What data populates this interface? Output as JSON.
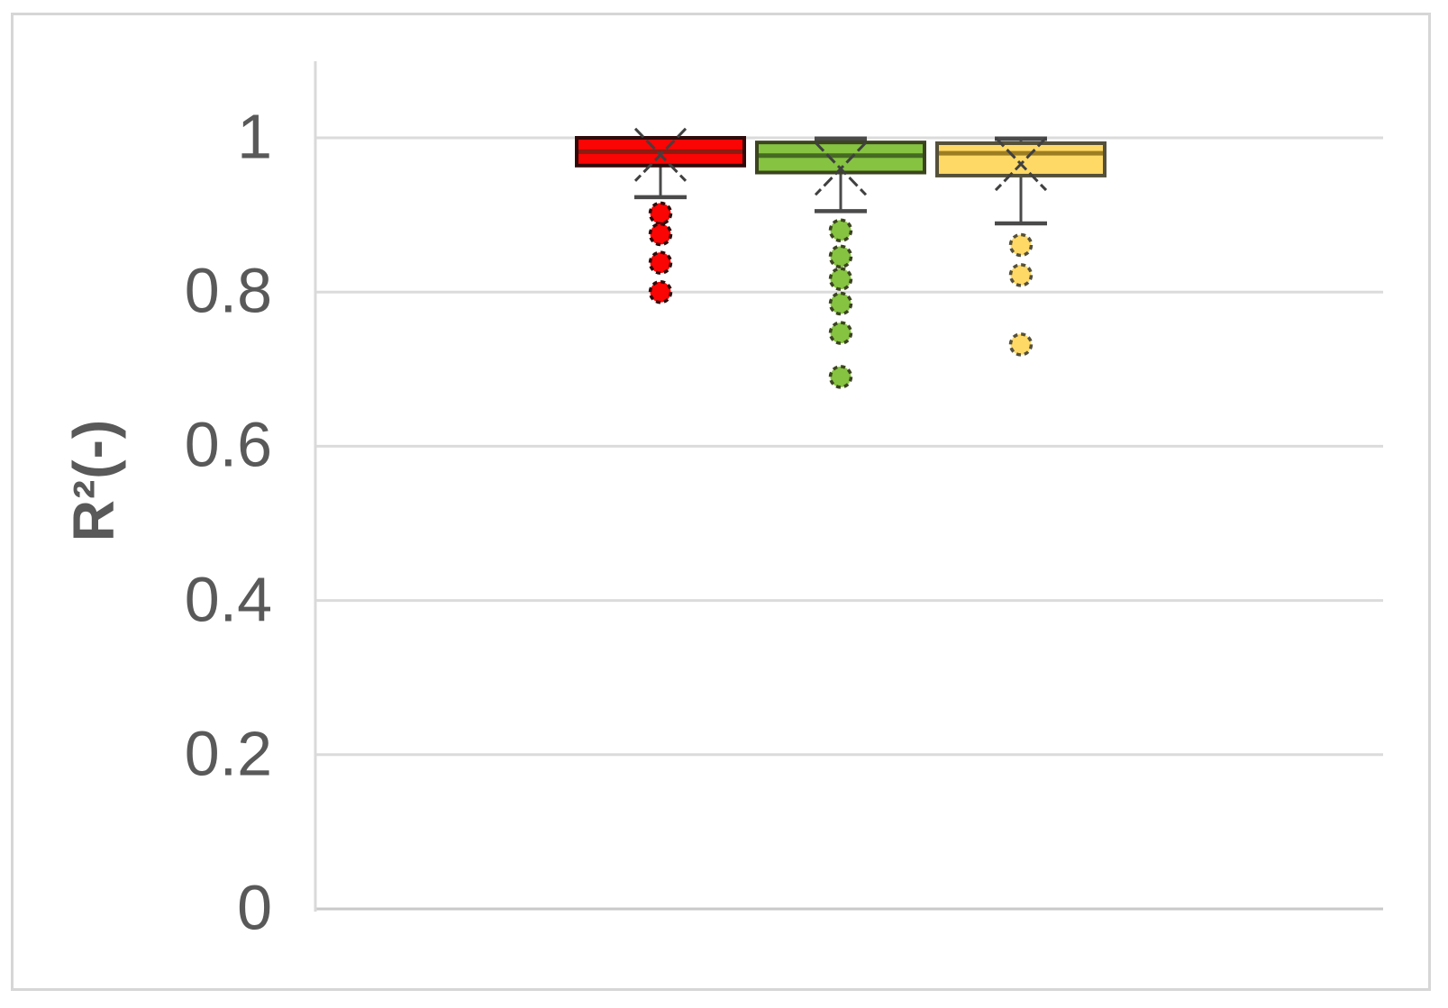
{
  "figure": {
    "background": "#FFFFFF",
    "border_color": "#D6D6D6"
  },
  "chart_data": {
    "type": "boxplot",
    "title": "",
    "xlabel": "",
    "ylabel": "R²(-)",
    "ylim": [
      0,
      1.1
    ],
    "grid": true,
    "legend_position": "none",
    "x_category_labels_visible": false,
    "yticks": [
      {
        "value": 1.0,
        "label": "1"
      },
      {
        "value": 0.8,
        "label": "0.8"
      },
      {
        "value": 0.6,
        "label": "0.6"
      },
      {
        "value": 0.4,
        "label": "0.4"
      },
      {
        "value": 0.2,
        "label": "0.2"
      },
      {
        "value": 0.0,
        "label": "0"
      }
    ],
    "colors": {
      "gridline": "#DBDBDB",
      "axis_line": "#D9D9D9",
      "zero_line": "#C9C9C9",
      "whisker": "#4A4A4A",
      "mean_marker": "#404040",
      "tick_text": "#595959",
      "title_text": "#595959"
    },
    "series": [
      {
        "name": "red",
        "fill": "#FB0404",
        "border": "#300A0A",
        "median_color": "#8E1A10",
        "q1": 0.964,
        "median": 0.982,
        "q3": 1.0,
        "whisker_low": 0.923,
        "whisker_high": 1.0,
        "upper_cap_visible": false,
        "mean": 0.978,
        "outliers": [
          0.902,
          0.875,
          0.838,
          0.8
        ]
      },
      {
        "name": "green",
        "fill": "#85C341",
        "border": "#3B441F",
        "median_color": "#466A21",
        "q1": 0.955,
        "median": 0.977,
        "q3": 0.994,
        "whisker_low": 0.905,
        "whisker_high": 1.0,
        "upper_cap_visible": true,
        "mean": 0.96,
        "outliers": [
          0.88,
          0.846,
          0.817,
          0.785,
          0.747,
          0.69
        ]
      },
      {
        "name": "yellow",
        "fill": "#FFD966",
        "border": "#55503A",
        "median_color": "#9D7D22",
        "q1": 0.951,
        "median": 0.98,
        "q3": 0.993,
        "whisker_low": 0.889,
        "whisker_high": 1.0,
        "upper_cap_visible": true,
        "mean": 0.966,
        "outliers": [
          0.861,
          0.822,
          0.732
        ]
      }
    ]
  }
}
